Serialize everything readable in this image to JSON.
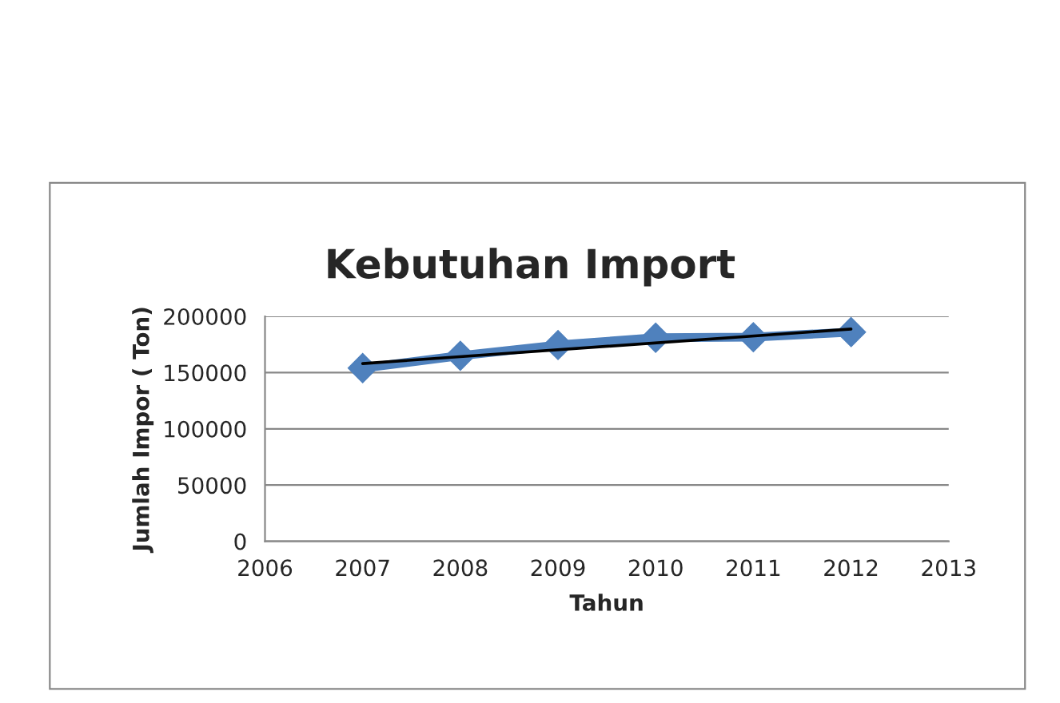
{
  "chart_data": {
    "type": "line",
    "title": "Kebutuhan Import",
    "xlabel": "Tahun",
    "ylabel": "Jumlah Impor ( Ton)",
    "x": [
      2007,
      2008,
      2009,
      2010,
      2011,
      2012
    ],
    "series": [
      {
        "color": "#4f81bd",
        "values": [
          154000,
          165000,
          174500,
          181000,
          181500,
          186000
        ],
        "marker": "diamond"
      },
      {
        "type": "line",
        "color": "#000000",
        "x": [
          2007,
          2012
        ],
        "values": [
          158000,
          188700
        ],
        "marker": "none"
      }
    ],
    "xlim": [
      2006,
      2013
    ],
    "xticks": [
      2006,
      2007,
      2008,
      2009,
      2010,
      2011,
      2012,
      2013
    ],
    "ylim": [
      0,
      200000
    ],
    "yticks": [
      0,
      50000,
      100000,
      150000,
      200000
    ],
    "grid": "y",
    "legend": false
  }
}
